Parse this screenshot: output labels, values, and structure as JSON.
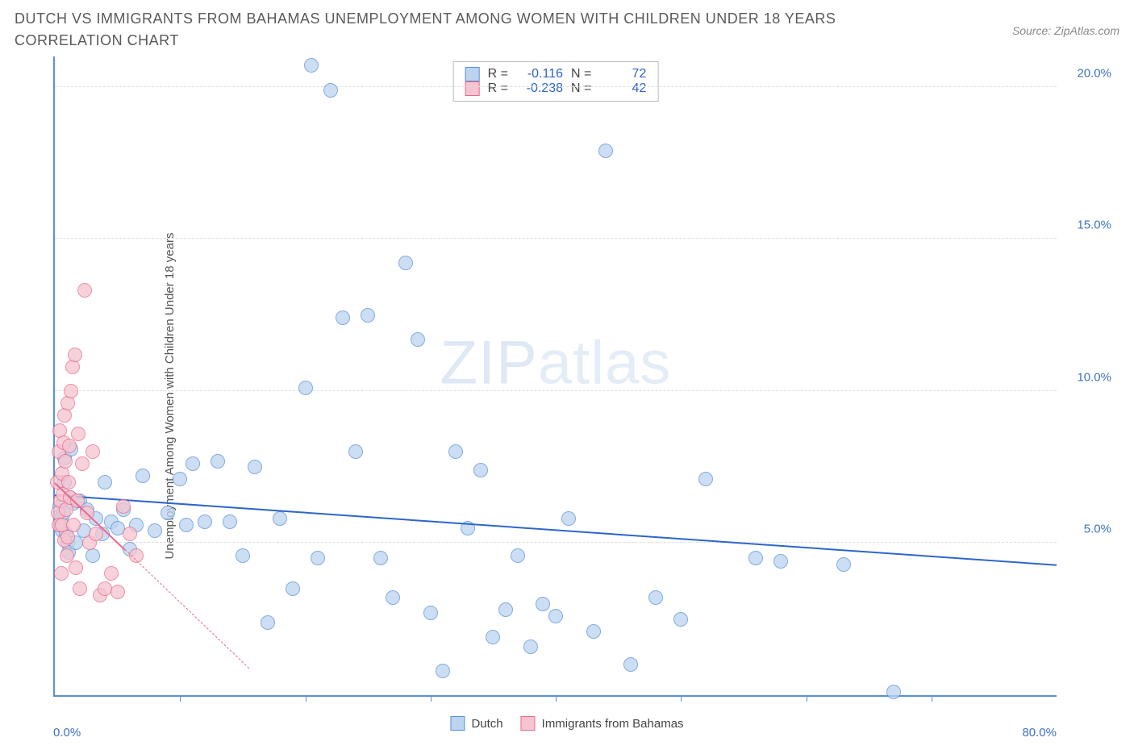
{
  "title": "DUTCH VS IMMIGRANTS FROM BAHAMAS UNEMPLOYMENT AMONG WOMEN WITH CHILDREN UNDER 18 YEARS CORRELATION CHART",
  "source_label": "Source: ZipAtlas.com",
  "ylabel": "Unemployment Among Women with Children Under 18 years",
  "watermark_bold": "ZIP",
  "watermark_thin": "atlas",
  "x_axis": {
    "min_label": "0.0%",
    "max_label": "80.0%",
    "min": 0,
    "max": 80,
    "tick_step": 10
  },
  "y_axis": {
    "ticks": [
      {
        "v": 5,
        "label": "5.0%"
      },
      {
        "v": 10,
        "label": "10.0%"
      },
      {
        "v": 15,
        "label": "15.0%"
      },
      {
        "v": 20,
        "label": "20.0%"
      }
    ],
    "min": 0,
    "max": 21
  },
  "series": [
    {
      "key": "dutch",
      "label": "Dutch",
      "fill": "#bcd4f0",
      "stroke": "#5a8fd6",
      "marker_radius": 9,
      "marker_opacity": 0.75,
      "stats": {
        "R": "-0.116",
        "N": "72"
      },
      "trend": {
        "x1": 0,
        "y1": 6.6,
        "x2": 80,
        "y2": 4.3,
        "color": "#2d66c9",
        "width": 2,
        "dash_extend": false
      },
      "points": [
        [
          0.4,
          6.2
        ],
        [
          0.5,
          5.8
        ],
        [
          0.6,
          5.4
        ],
        [
          0.7,
          6.0
        ],
        [
          0.8,
          7.0
        ],
        [
          0.8,
          7.8
        ],
        [
          0.9,
          5.3
        ],
        [
          1.0,
          5.0
        ],
        [
          1.1,
          4.7
        ],
        [
          1.2,
          6.5
        ],
        [
          1.3,
          8.1
        ],
        [
          1.5,
          6.3
        ],
        [
          1.7,
          5.0
        ],
        [
          2.0,
          6.4
        ],
        [
          2.3,
          5.4
        ],
        [
          2.6,
          6.1
        ],
        [
          3.0,
          4.6
        ],
        [
          3.3,
          5.8
        ],
        [
          3.8,
          5.3
        ],
        [
          4.0,
          7.0
        ],
        [
          4.5,
          5.7
        ],
        [
          5.0,
          5.5
        ],
        [
          5.5,
          6.1
        ],
        [
          6.0,
          4.8
        ],
        [
          6.5,
          5.6
        ],
        [
          7.0,
          7.2
        ],
        [
          8.0,
          5.4
        ],
        [
          9.0,
          6.0
        ],
        [
          10.0,
          7.1
        ],
        [
          10.5,
          5.6
        ],
        [
          11.0,
          7.6
        ],
        [
          12.0,
          5.7
        ],
        [
          13.0,
          7.7
        ],
        [
          14.0,
          5.7
        ],
        [
          15.0,
          4.6
        ],
        [
          16.0,
          7.5
        ],
        [
          17.0,
          2.4
        ],
        [
          18.0,
          5.8
        ],
        [
          19.0,
          3.5
        ],
        [
          20.0,
          10.1
        ],
        [
          20.5,
          20.7
        ],
        [
          21.0,
          4.5
        ],
        [
          22.0,
          19.9
        ],
        [
          23.0,
          12.4
        ],
        [
          24.0,
          8.0
        ],
        [
          25.0,
          12.5
        ],
        [
          26.0,
          4.5
        ],
        [
          27.0,
          3.2
        ],
        [
          28.0,
          14.2
        ],
        [
          29.0,
          11.7
        ],
        [
          30.0,
          2.7
        ],
        [
          31.0,
          0.8
        ],
        [
          32.0,
          8.0
        ],
        [
          33.0,
          5.5
        ],
        [
          34.0,
          7.4
        ],
        [
          35.0,
          1.9
        ],
        [
          36.0,
          2.8
        ],
        [
          37.0,
          4.6
        ],
        [
          38.0,
          1.6
        ],
        [
          39.0,
          3.0
        ],
        [
          40.0,
          2.6
        ],
        [
          41.0,
          5.8
        ],
        [
          43.0,
          2.1
        ],
        [
          44.0,
          17.9
        ],
        [
          46.0,
          1.0
        ],
        [
          48.0,
          3.2
        ],
        [
          50.0,
          2.5
        ],
        [
          52.0,
          7.1
        ],
        [
          56.0,
          4.5
        ],
        [
          58.0,
          4.4
        ],
        [
          63.0,
          4.3
        ],
        [
          67.0,
          0.1
        ]
      ]
    },
    {
      "key": "bahamas",
      "label": "Immigrants from Bahamas",
      "fill": "#f6c4d0",
      "stroke": "#e86a8a",
      "marker_radius": 9,
      "marker_opacity": 0.75,
      "stats": {
        "R": "-0.238",
        "N": "42"
      },
      "trend": {
        "x1": 0,
        "y1": 7.0,
        "x2": 5.6,
        "y2": 4.8,
        "color": "#e86a8a",
        "width": 2,
        "dash_extend": true,
        "dash_to_x": 15.5,
        "dash_to_y": 0.9
      },
      "points": [
        [
          0.2,
          7.0
        ],
        [
          0.25,
          6.0
        ],
        [
          0.3,
          8.0
        ],
        [
          0.35,
          5.6
        ],
        [
          0.4,
          8.7
        ],
        [
          0.45,
          6.4
        ],
        [
          0.5,
          4.0
        ],
        [
          0.55,
          7.3
        ],
        [
          0.6,
          5.6
        ],
        [
          0.65,
          6.6
        ],
        [
          0.7,
          8.3
        ],
        [
          0.75,
          9.2
        ],
        [
          0.8,
          5.1
        ],
        [
          0.85,
          7.7
        ],
        [
          0.9,
          6.1
        ],
        [
          0.95,
          4.6
        ],
        [
          1.0,
          5.2
        ],
        [
          1.05,
          9.6
        ],
        [
          1.1,
          7.0
        ],
        [
          1.15,
          8.2
        ],
        [
          1.2,
          6.5
        ],
        [
          1.3,
          10.0
        ],
        [
          1.4,
          10.8
        ],
        [
          1.5,
          5.6
        ],
        [
          1.6,
          11.2
        ],
        [
          1.7,
          4.2
        ],
        [
          1.8,
          6.4
        ],
        [
          1.9,
          8.6
        ],
        [
          2.0,
          3.5
        ],
        [
          2.2,
          7.6
        ],
        [
          2.4,
          13.3
        ],
        [
          2.6,
          6.0
        ],
        [
          2.8,
          5.0
        ],
        [
          3.0,
          8.0
        ],
        [
          3.3,
          5.3
        ],
        [
          3.6,
          3.3
        ],
        [
          4.0,
          3.5
        ],
        [
          4.5,
          4.0
        ],
        [
          5.0,
          3.4
        ],
        [
          5.5,
          6.2
        ],
        [
          6.0,
          5.3
        ],
        [
          6.5,
          4.6
        ]
      ]
    }
  ],
  "stats_box": {
    "r_label": "R =",
    "n_label": "N ="
  },
  "legend_bottom": [
    {
      "label": "Dutch",
      "fill": "#bcd4f0",
      "stroke": "#5a8fd6"
    },
    {
      "label": "Immigrants from Bahamas",
      "fill": "#f6c4d0",
      "stroke": "#e86a8a"
    }
  ],
  "colors": {
    "axis": "#5a8fd6",
    "grid": "#dddddd",
    "tick_text": "#3b72c4",
    "title_text": "#5a5a5a",
    "background": "#ffffff"
  }
}
